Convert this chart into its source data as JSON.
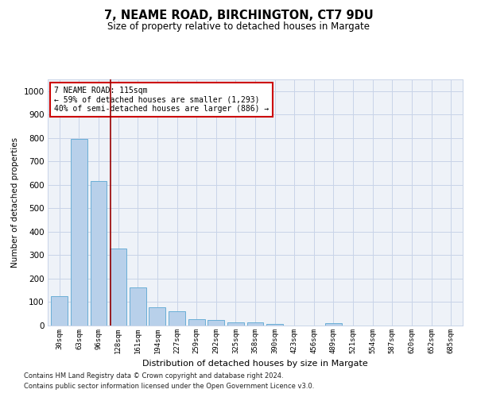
{
  "title": "7, NEAME ROAD, BIRCHINGTON, CT7 9DU",
  "subtitle": "Size of property relative to detached houses in Margate",
  "xlabel": "Distribution of detached houses by size in Margate",
  "ylabel": "Number of detached properties",
  "footer_line1": "Contains HM Land Registry data © Crown copyright and database right 2024.",
  "footer_line2": "Contains public sector information licensed under the Open Government Licence v3.0.",
  "bar_color": "#b8d0ea",
  "bar_edge_color": "#6aaed6",
  "grid_color": "#c8d4e8",
  "annotation_box_color": "#cc0000",
  "vline_color": "#990000",
  "categories": [
    "30sqm",
    "63sqm",
    "96sqm",
    "128sqm",
    "161sqm",
    "194sqm",
    "227sqm",
    "259sqm",
    "292sqm",
    "325sqm",
    "358sqm",
    "390sqm",
    "423sqm",
    "456sqm",
    "489sqm",
    "521sqm",
    "554sqm",
    "587sqm",
    "620sqm",
    "652sqm",
    "685sqm"
  ],
  "values": [
    125,
    795,
    615,
    328,
    162,
    78,
    60,
    28,
    25,
    15,
    15,
    8,
    0,
    0,
    10,
    0,
    0,
    0,
    0,
    0,
    0
  ],
  "ylim": [
    0,
    1050
  ],
  "yticks": [
    0,
    100,
    200,
    300,
    400,
    500,
    600,
    700,
    800,
    900,
    1000
  ],
  "vline_x": 2.62,
  "annotation_text": "7 NEAME ROAD: 115sqm\n← 59% of detached houses are smaller (1,293)\n40% of semi-detached houses are larger (886) →",
  "bg_color": "#eef2f8"
}
